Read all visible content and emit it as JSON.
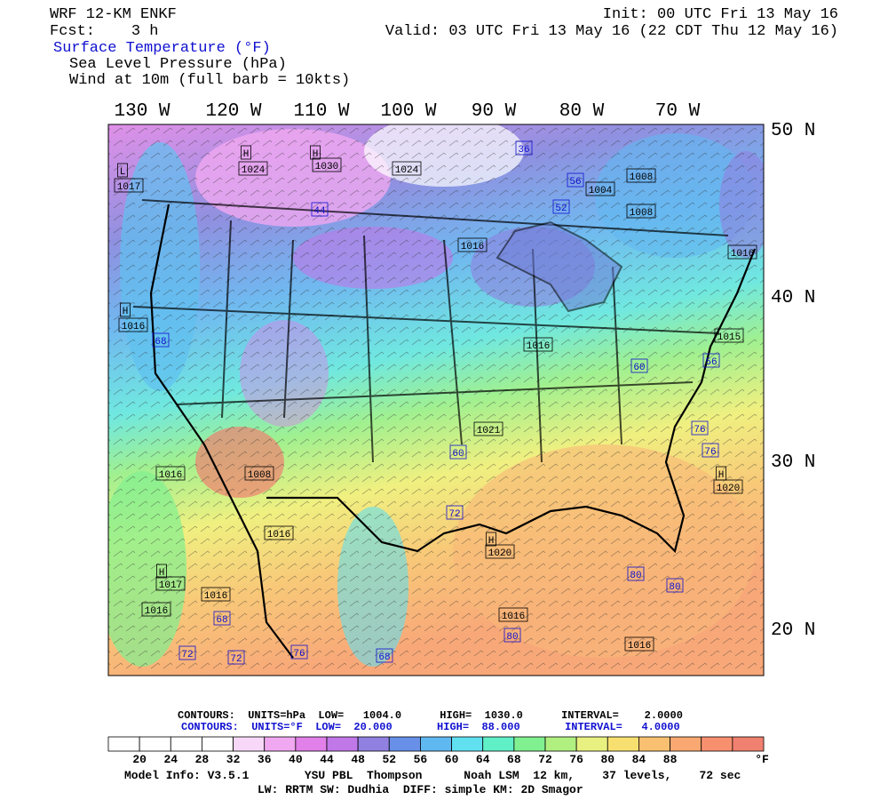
{
  "header": {
    "model": "WRF 12-KM ENKF",
    "forecast": "Fcst:    3 h",
    "init": "Init: 00 UTC Fri 13 May 16",
    "valid": "Valid: 03 UTC Fri 13 May 16 (22 CDT Thu 12 May 16)",
    "fields": [
      "Surface Temperature (°F)",
      "Sea Level Pressure (hPa)",
      "Wind at 10m (full barb = 10kts)"
    ]
  },
  "map": {
    "longitude_labels": [
      "130 W",
      "120 W",
      "110 W",
      "100 W",
      "90 W",
      "80 W",
      "70 W"
    ],
    "latitude_labels": [
      "50 N",
      "40 N",
      "30 N",
      "20 N"
    ],
    "pressure_labels": [
      "L",
      "1017",
      "H",
      "1024",
      "H",
      "1030",
      "1024",
      "1004",
      "1008",
      "1008",
      "1016",
      "1016",
      "H",
      "1016",
      "1016",
      "1015",
      "1021",
      "H",
      "1020",
      "1016",
      "1008",
      "1016",
      "H",
      "1020",
      "H",
      "1017",
      "1016",
      "1016",
      "1016",
      "1016"
    ],
    "temperature_labels": [
      "36",
      "56",
      "52",
      "44",
      "68",
      "60",
      "56",
      "60",
      "76",
      "76",
      "72",
      "68",
      "80",
      "80",
      "80",
      "72",
      "72",
      "76",
      "68"
    ]
  },
  "footer": {
    "pressure_contours": "CONTOURS:  UNITS=hPa  LOW=   1004.0      HIGH=  1030.0      INTERVAL=    2.0000",
    "temperature_contours": "CONTOURS:  UNITS=°F  LOW=  20.000       HIGH=  88.000       INTERVAL=   4.0000",
    "colorbar": {
      "labels": [
        "20",
        "24",
        "28",
        "32",
        "36",
        "40",
        "44",
        "48",
        "52",
        "56",
        "60",
        "64",
        "68",
        "72",
        "76",
        "80",
        "84",
        "88"
      ],
      "unit": "°F",
      "colors": [
        "#ffffff",
        "#ffffff",
        "#ffffff",
        "#ffffff",
        "#f8d8f8",
        "#f0a8f0",
        "#e080e8",
        "#c078e8",
        "#9080e0",
        "#6890e8",
        "#60b8f0",
        "#60e0f0",
        "#60f0c8",
        "#80f090",
        "#b0f080",
        "#e8f080",
        "#f8e070",
        "#f8c070",
        "#f8a870",
        "#f89070",
        "#f08070"
      ]
    },
    "model_info": "Model Info: V3.5.1        YSU PBL  Thompson      Noah LSM  12 km,    37 levels,    72 sec",
    "physics": "LW: RRTM SW: Dudhia  DIFF: simple KM: 2D Smagor"
  }
}
